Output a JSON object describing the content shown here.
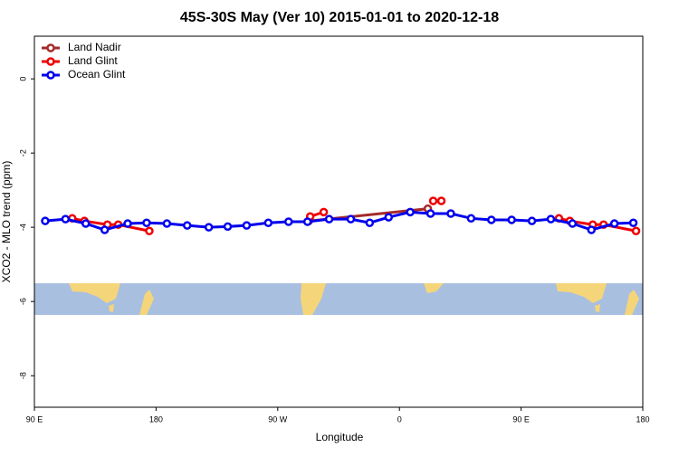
{
  "chart_data": {
    "type": "line",
    "title": "45S-30S May (Ver 10)   2015-01-01 to 2020-12-18",
    "xlabel": "Longitude",
    "ylabel": "XCO2 - MLO trend (ppm)",
    "xlim": [
      90,
      540
    ],
    "ylim": [
      -8.85,
      1.15
    ],
    "xticks": [
      {
        "value": 90,
        "label": "90 E"
      },
      {
        "value": 180,
        "label": "180"
      },
      {
        "value": 270,
        "label": "90 W"
      },
      {
        "value": 360,
        "label": "0"
      },
      {
        "value": 450,
        "label": "90 E"
      },
      {
        "value": 540,
        "label": "180"
      }
    ],
    "yticks": [
      0,
      -2,
      -4,
      -6,
      -8
    ],
    "legend": "top-left",
    "series": [
      {
        "name": "Land Nadir",
        "color": "#a52a2a",
        "x": [
          293,
          381
        ],
        "values": [
          -3.83,
          -3.5
        ]
      },
      {
        "name": "Land Glint",
        "color": "#ee0000",
        "x": [
          118,
          127,
          144,
          152,
          175,
          null,
          294,
          304,
          null,
          385,
          391,
          null,
          478,
          486,
          503,
          511,
          535
        ],
        "values": [
          -3.76,
          -3.83,
          -3.93,
          -3.93,
          -4.1,
          null,
          -3.71,
          -3.59,
          null,
          -3.29,
          -3.29,
          null,
          -3.76,
          -3.83,
          -3.93,
          -3.93,
          -4.1
        ]
      },
      {
        "name": "Ocean Glint",
        "color": "#0000ee",
        "x": [
          98,
          113,
          128,
          142,
          159,
          173,
          188,
          203,
          219,
          233,
          247,
          263,
          278,
          292,
          308,
          324,
          338,
          352,
          368,
          383,
          398,
          413,
          428,
          443,
          458,
          472,
          488,
          502,
          519,
          533
        ],
        "values": [
          -3.83,
          -3.78,
          -3.9,
          -4.07,
          -3.9,
          -3.88,
          -3.9,
          -3.95,
          -4.0,
          -3.98,
          -3.95,
          -3.88,
          -3.85,
          -3.85,
          -3.78,
          -3.78,
          -3.88,
          -3.73,
          -3.59,
          -3.63,
          -3.63,
          -3.76,
          -3.8,
          -3.8,
          -3.83,
          -3.78,
          -3.9,
          -4.07,
          -3.9,
          -3.88
        ]
      }
    ]
  }
}
